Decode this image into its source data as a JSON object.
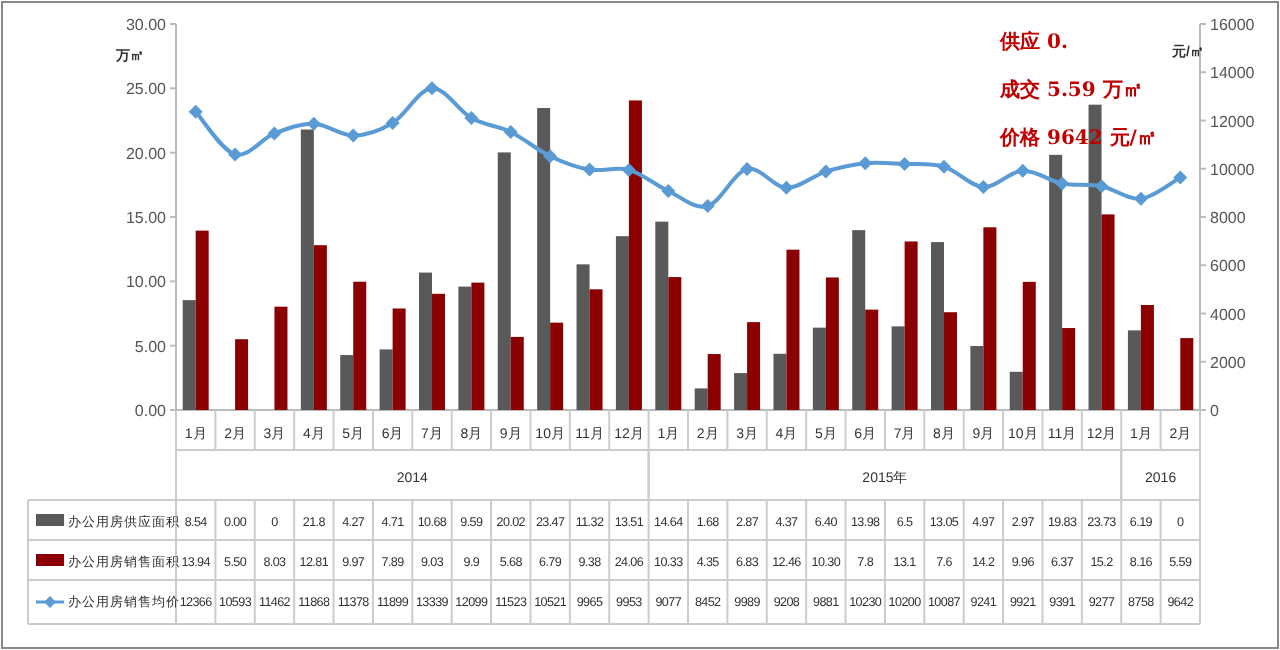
{
  "chart_data": {
    "type": "bar",
    "categories": [
      "1月",
      "2月",
      "3月",
      "4月",
      "5月",
      "6月",
      "7月",
      "8月",
      "9月",
      "10月",
      "11月",
      "12月",
      "1月",
      "2月",
      "3月",
      "4月",
      "5月",
      "6月",
      "7月",
      "8月",
      "9月",
      "10月",
      "11月",
      "12月",
      "1月",
      "2月"
    ],
    "ylabel": "万㎡",
    "y2label": "元/㎡",
    "ylim": [
      0,
      30
    ],
    "yticks": [
      {
        "value": 0,
        "label": "0.00"
      },
      {
        "value": 5,
        "label": "5.00"
      },
      {
        "value": 10,
        "label": "10.00"
      },
      {
        "value": 15,
        "label": "15.00"
      },
      {
        "value": 20,
        "label": "20.00"
      },
      {
        "value": 25,
        "label": "25.00"
      },
      {
        "value": 30,
        "label": "30.00"
      }
    ],
    "y2lim": [
      0,
      16000
    ],
    "y2ticks": [
      0,
      2000,
      4000,
      6000,
      8000,
      10000,
      12000,
      14000,
      16000
    ],
    "legend": "bottom",
    "grid": false,
    "series": [
      {
        "name": "办公用房供应面积",
        "color": "#595959",
        "values": [
          8.54,
          0,
          0,
          21.8,
          4.27,
          4.71,
          10.68,
          9.59,
          20.02,
          23.47,
          11.32,
          13.51,
          14.64,
          1.68,
          2.87,
          4.37,
          6.4,
          13.98,
          6.5,
          13.05,
          4.97,
          2.97,
          19.83,
          23.73,
          6.19,
          0
        ],
        "value_labels": [
          "8.54",
          "0.00",
          "0",
          "21.8",
          "4.27",
          "4.71",
          "10.68",
          "9.59",
          "20.02",
          "23.47",
          "11.32",
          "13.51",
          "14.64",
          "1.68",
          "2.87",
          "4.37",
          "6.40",
          "13.98",
          "6.5",
          "13.05",
          "4.97",
          "2.97",
          "19.83",
          "23.73",
          "6.19",
          "0"
        ]
      },
      {
        "name": "办公用房销售面积",
        "color": "#8b0000",
        "values": [
          13.94,
          5.5,
          8.03,
          12.81,
          9.97,
          7.89,
          9.03,
          9.9,
          5.68,
          6.79,
          9.38,
          24.06,
          10.33,
          4.35,
          6.83,
          12.46,
          10.3,
          7.8,
          13.1,
          7.6,
          14.2,
          9.96,
          6.37,
          15.2,
          8.16,
          5.59
        ],
        "value_labels": [
          "13.94",
          "5.50",
          "8.03",
          "12.81",
          "9.97",
          "7.89",
          "9.03",
          "9.9",
          "5.68",
          "6.79",
          "9.38",
          "24.06",
          "10.33",
          "4.35",
          "6.83",
          "12.46",
          "10.30",
          "7.8",
          "13.1",
          "7.6",
          "14.2",
          "9.96",
          "6.37",
          "15.2",
          "8.16",
          "5.59"
        ]
      },
      {
        "name": "办公用房销售均价",
        "type": "line",
        "axis": "y2",
        "color": "#5b9bd5",
        "marker": "diamond",
        "values": [
          12366,
          10593,
          11462,
          11868,
          11378,
          11899,
          13339,
          12099,
          11523,
          10521,
          9965,
          9953,
          9077,
          8452,
          9989,
          9208,
          9881,
          10230,
          10200,
          10087,
          9241,
          9921,
          9391,
          9277,
          8758,
          9642
        ],
        "value_labels": [
          "12366",
          "10593",
          "11462",
          "11868",
          "11378",
          "11899",
          "13339",
          "12099",
          "11523",
          "10521",
          "9965",
          "9953",
          "9077",
          "8452",
          "9989",
          "9208",
          "9881",
          "10230",
          "10200",
          "10087",
          "9241",
          "9921",
          "9391",
          "9277",
          "8758",
          "9642"
        ]
      }
    ],
    "annotations": [
      "供应 0.",
      "成交 5.59 万㎡",
      "价格 9642 元/㎡",
      "2014",
      "2015年",
      "2016"
    ]
  }
}
